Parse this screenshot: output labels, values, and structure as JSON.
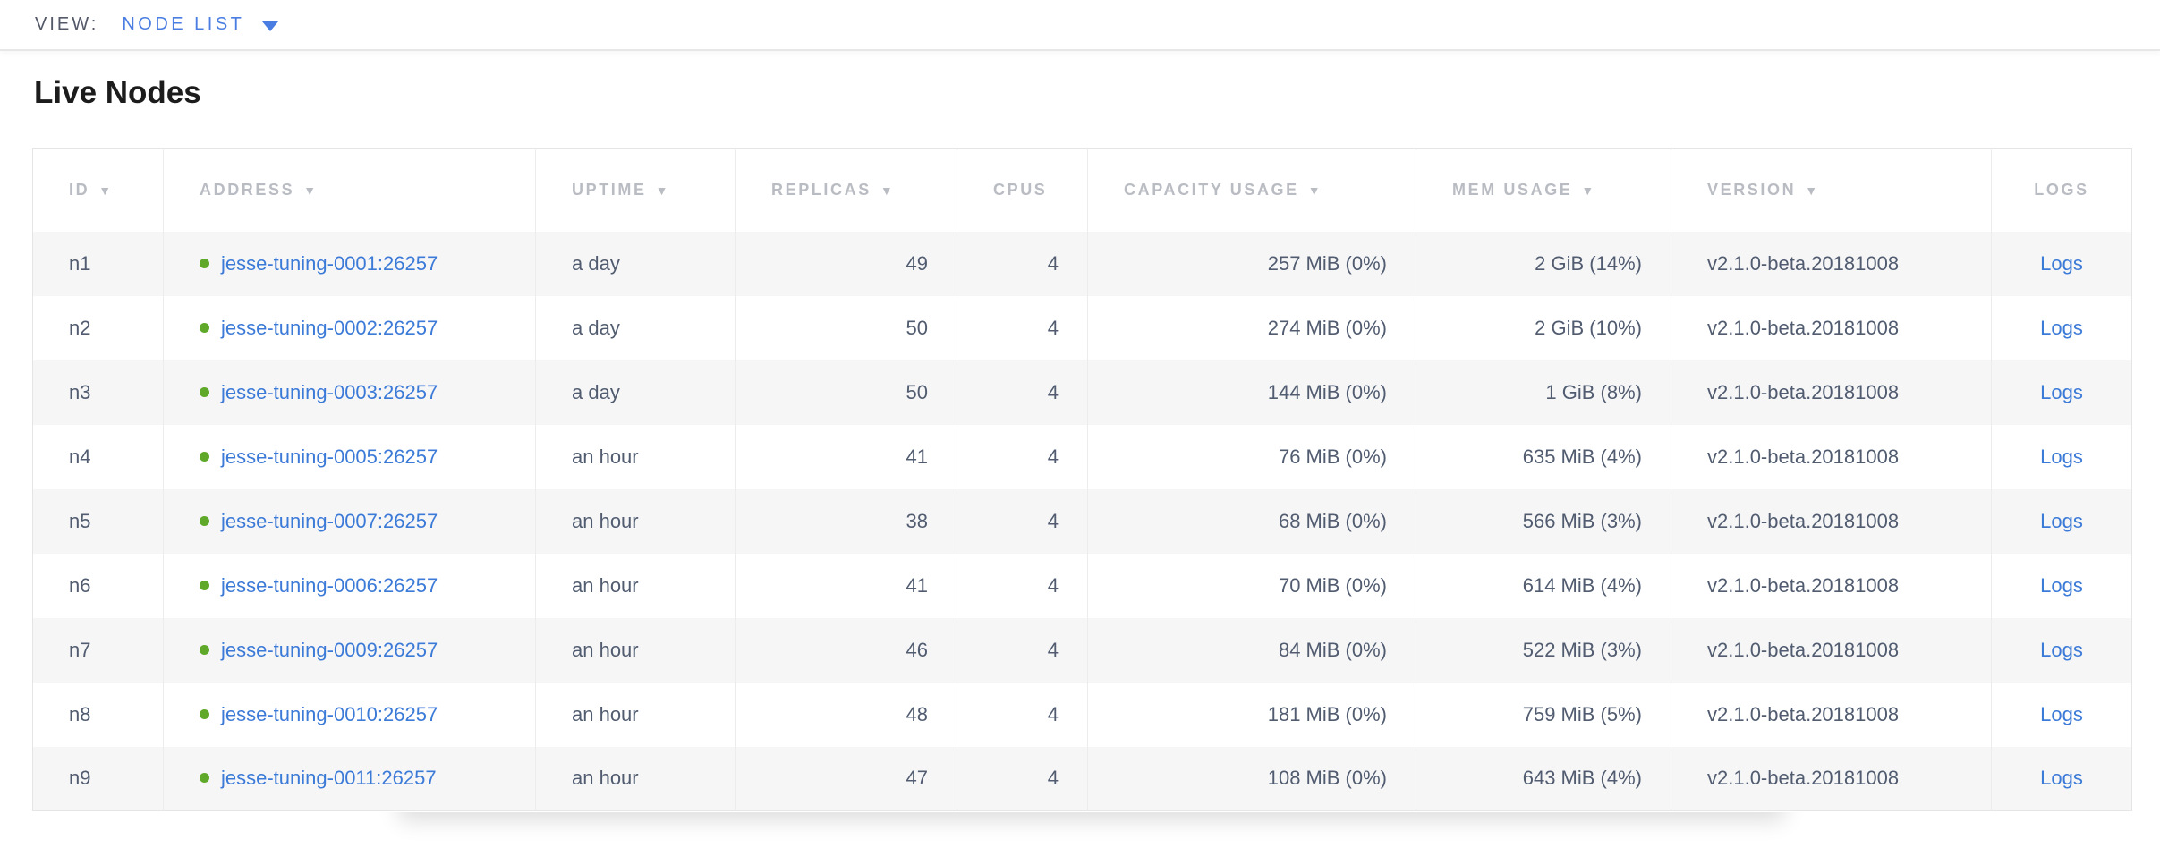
{
  "view_bar": {
    "label": "VIEW:",
    "selected": "NODE LIST"
  },
  "page": {
    "title": "Live Nodes"
  },
  "table": {
    "columns": [
      {
        "key": "id",
        "label": "ID",
        "sortable": true,
        "align": "left"
      },
      {
        "key": "address",
        "label": "ADDRESS",
        "sortable": true,
        "align": "left"
      },
      {
        "key": "uptime",
        "label": "UPTIME",
        "sortable": true,
        "align": "left"
      },
      {
        "key": "replicas",
        "label": "REPLICAS",
        "sortable": true,
        "align": "right"
      },
      {
        "key": "cpus",
        "label": "CPUS",
        "sortable": false,
        "align": "right"
      },
      {
        "key": "capacity",
        "label": "CAPACITY USAGE",
        "sortable": true,
        "align": "right"
      },
      {
        "key": "mem",
        "label": "MEM USAGE",
        "sortable": true,
        "align": "right"
      },
      {
        "key": "version",
        "label": "VERSION",
        "sortable": true,
        "align": "left"
      },
      {
        "key": "logs",
        "label": "LOGS",
        "sortable": false,
        "align": "center"
      }
    ],
    "rows": [
      {
        "id": "n1",
        "address": "jesse-tuning-0001:26257",
        "uptime": "a day",
        "replicas": "49",
        "cpus": "4",
        "capacity": "257 MiB (0%)",
        "mem": "2 GiB (14%)",
        "version": "v2.1.0-beta.20181008",
        "logs": "Logs"
      },
      {
        "id": "n2",
        "address": "jesse-tuning-0002:26257",
        "uptime": "a day",
        "replicas": "50",
        "cpus": "4",
        "capacity": "274 MiB (0%)",
        "mem": "2 GiB (10%)",
        "version": "v2.1.0-beta.20181008",
        "logs": "Logs"
      },
      {
        "id": "n3",
        "address": "jesse-tuning-0003:26257",
        "uptime": "a day",
        "replicas": "50",
        "cpus": "4",
        "capacity": "144 MiB (0%)",
        "mem": "1 GiB (8%)",
        "version": "v2.1.0-beta.20181008",
        "logs": "Logs"
      },
      {
        "id": "n4",
        "address": "jesse-tuning-0005:26257",
        "uptime": "an hour",
        "replicas": "41",
        "cpus": "4",
        "capacity": "76 MiB (0%)",
        "mem": "635 MiB (4%)",
        "version": "v2.1.0-beta.20181008",
        "logs": "Logs"
      },
      {
        "id": "n5",
        "address": "jesse-tuning-0007:26257",
        "uptime": "an hour",
        "replicas": "38",
        "cpus": "4",
        "capacity": "68 MiB (0%)",
        "mem": "566 MiB (3%)",
        "version": "v2.1.0-beta.20181008",
        "logs": "Logs"
      },
      {
        "id": "n6",
        "address": "jesse-tuning-0006:26257",
        "uptime": "an hour",
        "replicas": "41",
        "cpus": "4",
        "capacity": "70 MiB (0%)",
        "mem": "614 MiB (4%)",
        "version": "v2.1.0-beta.20181008",
        "logs": "Logs"
      },
      {
        "id": "n7",
        "address": "jesse-tuning-0009:26257",
        "uptime": "an hour",
        "replicas": "46",
        "cpus": "4",
        "capacity": "84 MiB (0%)",
        "mem": "522 MiB (3%)",
        "version": "v2.1.0-beta.20181008",
        "logs": "Logs"
      },
      {
        "id": "n8",
        "address": "jesse-tuning-0010:26257",
        "uptime": "an hour",
        "replicas": "48",
        "cpus": "4",
        "capacity": "181 MiB (0%)",
        "mem": "759 MiB (5%)",
        "version": "v2.1.0-beta.20181008",
        "logs": "Logs"
      },
      {
        "id": "n9",
        "address": "jesse-tuning-0011:26257",
        "uptime": "an hour",
        "replicas": "47",
        "cpus": "4",
        "capacity": "108 MiB (0%)",
        "mem": "643 MiB (4%)",
        "version": "v2.1.0-beta.20181008",
        "logs": "Logs"
      }
    ]
  },
  "icons": {
    "sort_arrow": "▼",
    "dropdown_caret": "chevron-down",
    "live_status": "green-dot"
  },
  "colors": {
    "link_blue": "#3b7ad7",
    "accent_blue": "#4a7de2",
    "live_green": "#5fa82a",
    "header_gray": "#b9bcc2",
    "cell_text": "#515c70",
    "row_stripe": "#f6f6f7",
    "border": "#ececec"
  }
}
